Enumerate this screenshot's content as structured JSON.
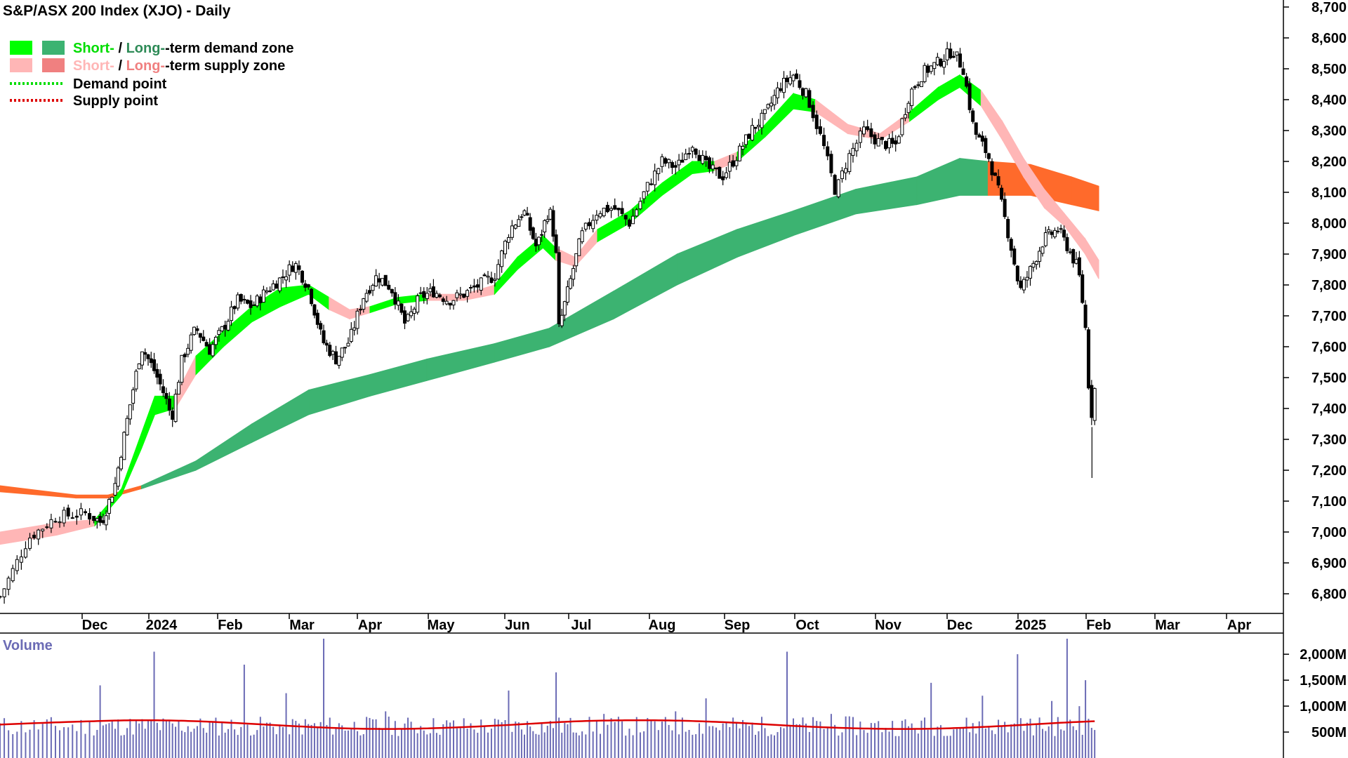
{
  "chart_data": {
    "type": "candlestick",
    "title": "S&P/ASX 200 Index (XJO) - Daily",
    "legend": {
      "items": [
        {
          "swatch_short": "#00ff00",
          "swatch_long": "#3cb371",
          "text_short": "Short-",
          "text_sep": " / ",
          "text_long": "Long-",
          "text_rest": "-term demand zone",
          "short_color": "#00dd00",
          "long_color": "#2e8b57"
        },
        {
          "swatch_short": "#ffb6b6",
          "swatch_long": "#f08080",
          "text_short": "Short-",
          "text_sep": " / ",
          "text_long": "Long-",
          "text_rest": "-term supply zone",
          "short_color": "#ffb6b6",
          "long_color": "#f08080"
        }
      ],
      "lines": [
        {
          "label": "Demand point",
          "color": "#00dd00"
        },
        {
          "label": "Supply point",
          "color": "#dd0000"
        }
      ]
    },
    "x_labels": [
      "Dec",
      "2024",
      "Feb",
      "Mar",
      "Apr",
      "May",
      "Jun",
      "Jul",
      "Aug",
      "Sep",
      "Oct",
      "Nov",
      "Dec",
      "2025",
      "Feb",
      "Mar",
      "Apr"
    ],
    "y_ticks": [
      "8,700",
      "8,600",
      "8,500",
      "8,400",
      "8,300",
      "8,200",
      "8,100",
      "8,000",
      "7,900",
      "7,800",
      "7,700",
      "7,600",
      "7,500",
      "7,400",
      "7,300",
      "7,200",
      "7,100",
      "7,000",
      "6,900",
      "6,800"
    ],
    "y_tick_values": [
      8700,
      8600,
      8500,
      8400,
      8300,
      8200,
      8100,
      8000,
      7900,
      7800,
      7700,
      7600,
      7500,
      7400,
      7300,
      7200,
      7100,
      7000,
      6900,
      6800
    ],
    "ylim": [
      6770,
      8720
    ],
    "close_path": [
      {
        "m": 0.0,
        "v": 6790
      },
      {
        "m": 0.3,
        "v": 6980
      },
      {
        "m": 0.6,
        "v": 7050
      },
      {
        "m": 0.9,
        "v": 7060
      },
      {
        "m": 1.1,
        "v": 7030
      },
      {
        "m": 1.3,
        "v": 7150
      },
      {
        "m": 1.5,
        "v": 7380
      },
      {
        "m": 1.7,
        "v": 7600
      },
      {
        "m": 1.9,
        "v": 7520
      },
      {
        "m": 2.05,
        "v": 7440
      },
      {
        "m": 2.15,
        "v": 7370
      },
      {
        "m": 2.3,
        "v": 7560
      },
      {
        "m": 2.5,
        "v": 7660
      },
      {
        "m": 2.7,
        "v": 7590
      },
      {
        "m": 2.9,
        "v": 7660
      },
      {
        "m": 3.1,
        "v": 7750
      },
      {
        "m": 3.3,
        "v": 7730
      },
      {
        "m": 3.5,
        "v": 7780
      },
      {
        "m": 3.7,
        "v": 7820
      },
      {
        "m": 3.9,
        "v": 7870
      },
      {
        "m": 4.1,
        "v": 7790
      },
      {
        "m": 4.3,
        "v": 7620
      },
      {
        "m": 4.5,
        "v": 7560
      },
      {
        "m": 4.7,
        "v": 7620
      },
      {
        "m": 4.9,
        "v": 7760
      },
      {
        "m": 5.1,
        "v": 7830
      },
      {
        "m": 5.3,
        "v": 7790
      },
      {
        "m": 5.5,
        "v": 7670
      },
      {
        "m": 5.7,
        "v": 7760
      },
      {
        "m": 5.9,
        "v": 7780
      },
      {
        "m": 6.1,
        "v": 7750
      },
      {
        "m": 6.3,
        "v": 7770
      },
      {
        "m": 6.5,
        "v": 7800
      },
      {
        "m": 6.7,
        "v": 7830
      },
      {
        "m": 6.9,
        "v": 7980
      },
      {
        "m": 7.1,
        "v": 8040
      },
      {
        "m": 7.3,
        "v": 7920
      },
      {
        "m": 7.5,
        "v": 8050
      },
      {
        "m": 7.6,
        "v": 7920
      },
      {
        "m": 7.65,
        "v": 7660
      },
      {
        "m": 7.8,
        "v": 7790
      },
      {
        "m": 8.0,
        "v": 7960
      },
      {
        "m": 8.2,
        "v": 8040
      },
      {
        "m": 8.4,
        "v": 8050
      },
      {
        "m": 8.6,
        "v": 8000
      },
      {
        "m": 8.8,
        "v": 8110
      },
      {
        "m": 9.0,
        "v": 8200
      },
      {
        "m": 9.2,
        "v": 8180
      },
      {
        "m": 9.4,
        "v": 8260
      },
      {
        "m": 9.6,
        "v": 8180
      },
      {
        "m": 9.8,
        "v": 8150
      },
      {
        "m": 10.0,
        "v": 8220
      },
      {
        "m": 10.2,
        "v": 8300
      },
      {
        "m": 10.4,
        "v": 8350
      },
      {
        "m": 10.6,
        "v": 8440
      },
      {
        "m": 10.8,
        "v": 8480
      },
      {
        "m": 11.0,
        "v": 8410
      },
      {
        "m": 11.2,
        "v": 8250
      },
      {
        "m": 11.35,
        "v": 8100
      },
      {
        "m": 11.5,
        "v": 8210
      },
      {
        "m": 11.7,
        "v": 8300
      },
      {
        "m": 11.9,
        "v": 8260
      },
      {
        "m": 12.1,
        "v": 8250
      },
      {
        "m": 12.3,
        "v": 8420
      },
      {
        "m": 12.5,
        "v": 8490
      },
      {
        "m": 12.7,
        "v": 8520
      },
      {
        "m": 12.9,
        "v": 8560
      },
      {
        "m": 13.05,
        "v": 8500
      },
      {
        "m": 13.2,
        "v": 8300
      },
      {
        "m": 13.4,
        "v": 8220
      },
      {
        "m": 13.55,
        "v": 8100
      },
      {
        "m": 13.7,
        "v": 7950
      },
      {
        "m": 13.85,
        "v": 7780
      },
      {
        "m": 14.0,
        "v": 7850
      },
      {
        "m": 14.2,
        "v": 7950
      },
      {
        "m": 14.4,
        "v": 7980
      },
      {
        "m": 14.55,
        "v": 7920
      },
      {
        "m": 14.7,
        "v": 7850
      },
      {
        "m": 14.8,
        "v": 7680
      },
      {
        "m": 14.88,
        "v": 7360
      },
      {
        "m": 14.95,
        "v": 7480
      }
    ],
    "short_zone": [
      {
        "m": 0.0,
        "lo": 6960,
        "hi": 7000,
        "state": "supply"
      },
      {
        "m": 0.6,
        "lo": 6990,
        "hi": 7030,
        "state": "supply"
      },
      {
        "m": 1.0,
        "lo": 7020,
        "hi": 7040,
        "state": "demand"
      },
      {
        "m": 1.4,
        "lo": 7120,
        "hi": 7140,
        "state": "demand"
      },
      {
        "m": 1.7,
        "lo": 7270,
        "hi": 7320,
        "state": "demand"
      },
      {
        "m": 1.9,
        "lo": 7380,
        "hi": 7440,
        "state": "demand"
      },
      {
        "m": 2.2,
        "lo": 7400,
        "hi": 7440,
        "state": "supply"
      },
      {
        "m": 2.5,
        "lo": 7510,
        "hi": 7570,
        "state": "demand"
      },
      {
        "m": 2.9,
        "lo": 7600,
        "hi": 7650,
        "state": "demand"
      },
      {
        "m": 3.3,
        "lo": 7680,
        "hi": 7730,
        "state": "demand"
      },
      {
        "m": 3.7,
        "lo": 7730,
        "hi": 7790,
        "state": "demand"
      },
      {
        "m": 4.1,
        "lo": 7770,
        "hi": 7800,
        "state": "demand"
      },
      {
        "m": 4.4,
        "lo": 7720,
        "hi": 7760,
        "state": "supply"
      },
      {
        "m": 4.7,
        "lo": 7690,
        "hi": 7720,
        "state": "supply"
      },
      {
        "m": 5.0,
        "lo": 7710,
        "hi": 7730,
        "state": "demand"
      },
      {
        "m": 5.4,
        "lo": 7740,
        "hi": 7760,
        "state": "demand"
      },
      {
        "m": 5.8,
        "lo": 7750,
        "hi": 7770,
        "state": "supply"
      },
      {
        "m": 6.3,
        "lo": 7750,
        "hi": 7770,
        "state": "supply"
      },
      {
        "m": 6.7,
        "lo": 7770,
        "hi": 7800,
        "state": "demand"
      },
      {
        "m": 7.0,
        "lo": 7850,
        "hi": 7890,
        "state": "demand"
      },
      {
        "m": 7.4,
        "lo": 7920,
        "hi": 7960,
        "state": "demand"
      },
      {
        "m": 7.6,
        "lo": 7880,
        "hi": 7920,
        "state": "supply"
      },
      {
        "m": 7.9,
        "lo": 7860,
        "hi": 7890,
        "state": "supply"
      },
      {
        "m": 8.2,
        "lo": 7940,
        "hi": 7980,
        "state": "demand"
      },
      {
        "m": 8.6,
        "lo": 8000,
        "hi": 8040,
        "state": "demand"
      },
      {
        "m": 9.0,
        "lo": 8090,
        "hi": 8130,
        "state": "demand"
      },
      {
        "m": 9.4,
        "lo": 8160,
        "hi": 8200,
        "state": "demand"
      },
      {
        "m": 9.7,
        "lo": 8170,
        "hi": 8200,
        "state": "supply"
      },
      {
        "m": 10.0,
        "lo": 8200,
        "hi": 8230,
        "state": "demand"
      },
      {
        "m": 10.4,
        "lo": 8280,
        "hi": 8320,
        "state": "demand"
      },
      {
        "m": 10.8,
        "lo": 8370,
        "hi": 8420,
        "state": "demand"
      },
      {
        "m": 11.1,
        "lo": 8360,
        "hi": 8400,
        "state": "supply"
      },
      {
        "m": 11.5,
        "lo": 8290,
        "hi": 8320,
        "state": "supply"
      },
      {
        "m": 11.9,
        "lo": 8270,
        "hi": 8290,
        "state": "supply"
      },
      {
        "m": 12.3,
        "lo": 8330,
        "hi": 8360,
        "state": "demand"
      },
      {
        "m": 12.7,
        "lo": 8400,
        "hi": 8440,
        "state": "demand"
      },
      {
        "m": 13.0,
        "lo": 8440,
        "hi": 8480,
        "state": "demand"
      },
      {
        "m": 13.3,
        "lo": 8380,
        "hi": 8430,
        "state": "supply"
      },
      {
        "m": 13.6,
        "lo": 8270,
        "hi": 8330,
        "state": "supply"
      },
      {
        "m": 13.9,
        "lo": 8150,
        "hi": 8210,
        "state": "supply"
      },
      {
        "m": 14.2,
        "lo": 8050,
        "hi": 8110,
        "state": "supply"
      },
      {
        "m": 14.5,
        "lo": 7990,
        "hi": 8030,
        "state": "supply"
      },
      {
        "m": 14.8,
        "lo": 7900,
        "hi": 7950,
        "state": "supply"
      },
      {
        "m": 15.0,
        "lo": 7820,
        "hi": 7880,
        "state": "supply"
      }
    ],
    "long_zone": [
      {
        "m": 0.0,
        "lo": 7130,
        "hi": 7150,
        "state": "supply"
      },
      {
        "m": 0.8,
        "lo": 7110,
        "hi": 7120,
        "state": "supply"
      },
      {
        "m": 1.2,
        "lo": 7110,
        "hi": 7120,
        "state": "supply"
      },
      {
        "m": 1.7,
        "lo": 7140,
        "hi": 7150,
        "state": "demand"
      },
      {
        "m": 2.5,
        "lo": 7200,
        "hi": 7230,
        "state": "demand"
      },
      {
        "m": 3.3,
        "lo": 7290,
        "hi": 7350,
        "state": "demand"
      },
      {
        "m": 4.1,
        "lo": 7380,
        "hi": 7460,
        "state": "demand"
      },
      {
        "m": 5.0,
        "lo": 7440,
        "hi": 7510,
        "state": "demand"
      },
      {
        "m": 5.8,
        "lo": 7490,
        "hi": 7560,
        "state": "demand"
      },
      {
        "m": 6.7,
        "lo": 7550,
        "hi": 7610,
        "state": "demand"
      },
      {
        "m": 7.5,
        "lo": 7600,
        "hi": 7660,
        "state": "demand"
      },
      {
        "m": 8.4,
        "lo": 7690,
        "hi": 7780,
        "state": "demand"
      },
      {
        "m": 9.2,
        "lo": 7800,
        "hi": 7900,
        "state": "demand"
      },
      {
        "m": 10.0,
        "lo": 7890,
        "hi": 7980,
        "state": "demand"
      },
      {
        "m": 10.8,
        "lo": 7960,
        "hi": 8040,
        "state": "demand"
      },
      {
        "m": 11.6,
        "lo": 8030,
        "hi": 8110,
        "state": "demand"
      },
      {
        "m": 12.4,
        "lo": 8060,
        "hi": 8150,
        "state": "demand"
      },
      {
        "m": 13.0,
        "lo": 8090,
        "hi": 8210,
        "state": "demand"
      },
      {
        "m": 13.4,
        "lo": 8090,
        "hi": 8200,
        "state": "supply"
      },
      {
        "m": 14.0,
        "lo": 8090,
        "hi": 8190,
        "state": "supply"
      },
      {
        "m": 14.6,
        "lo": 8060,
        "hi": 8150,
        "state": "supply"
      },
      {
        "m": 15.0,
        "lo": 8040,
        "hi": 8120,
        "state": "supply"
      }
    ],
    "zone_colors": {
      "short_demand": "#00ff00",
      "short_supply": "#ffb6b6",
      "long_demand": "#3cb371",
      "long_supply": "#ff6a2b",
      "crossover": "#ff6a2b"
    },
    "volume": {
      "title": "Volume",
      "y_ticks": [
        "2,000M",
        "1,500M",
        "1,000M",
        "500M"
      ],
      "y_tick_values": [
        2000,
        1500,
        1000,
        500
      ],
      "ylim": [
        0,
        2300
      ],
      "bar_color": "#6b6bb5",
      "avg_color": "#dd0000",
      "base_level": 700,
      "spikes": [
        {
          "m": 1.1,
          "v": 1400
        },
        {
          "m": 1.9,
          "v": 2050
        },
        {
          "m": 3.2,
          "v": 1800
        },
        {
          "m": 3.8,
          "v": 1250
        },
        {
          "m": 4.3,
          "v": 2300
        },
        {
          "m": 5.2,
          "v": 900
        },
        {
          "m": 6.9,
          "v": 1300
        },
        {
          "m": 7.6,
          "v": 1650
        },
        {
          "m": 8.3,
          "v": 850
        },
        {
          "m": 9.2,
          "v": 900
        },
        {
          "m": 9.6,
          "v": 1150
        },
        {
          "m": 10.7,
          "v": 2050
        },
        {
          "m": 11.3,
          "v": 850
        },
        {
          "m": 12.6,
          "v": 1450
        },
        {
          "m": 13.3,
          "v": 1200
        },
        {
          "m": 13.8,
          "v": 2000
        },
        {
          "m": 14.3,
          "v": 1100
        },
        {
          "m": 14.55,
          "v": 2300
        },
        {
          "m": 14.7,
          "v": 1000
        },
        {
          "m": 14.82,
          "v": 1500
        }
      ]
    }
  }
}
